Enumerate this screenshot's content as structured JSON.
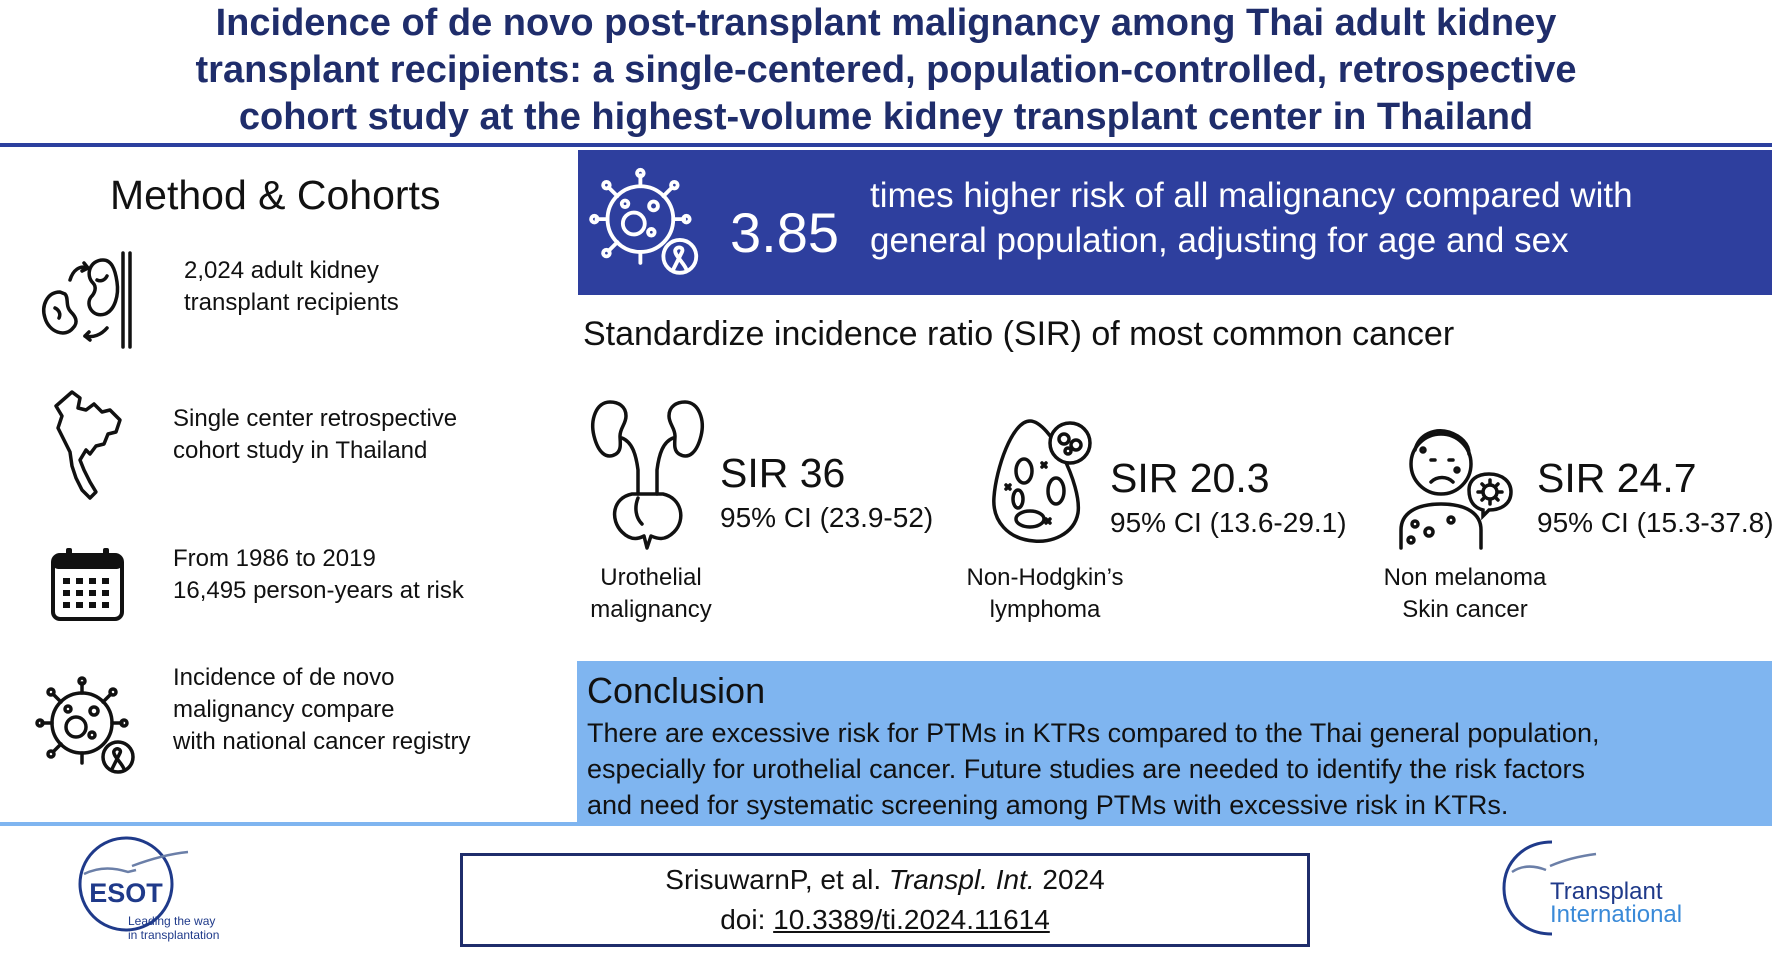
{
  "title": {
    "line1": "Incidence of de novo post-transplant malignancy among Thai adult kidney",
    "line2": "transplant recipients: a single-centered, population-controlled, retrospective",
    "line3": "cohort study at the highest-volume kidney transplant center in Thailand"
  },
  "method": {
    "heading": "Method & Cohorts",
    "items": [
      {
        "icon": "kidney-transplant-icon",
        "line1": "2,024 adult kidney",
        "line2": "transplant recipients",
        "line3": ""
      },
      {
        "icon": "thailand-map-icon",
        "line1": "Single center retrospective",
        "line2": "cohort study in  Thailand",
        "line3": ""
      },
      {
        "icon": "calendar-icon",
        "line1": "From 1986 to 2019",
        "line2": "16,495 person-years at risk",
        "line3": ""
      },
      {
        "icon": "cancer-cell-icon",
        "line1": "Incidence of de novo",
        "line2": "malignancy compare",
        "line3": "with national cancer registry"
      }
    ]
  },
  "finding": {
    "icon": "cancer-cell-icon",
    "value": "3.85",
    "line1": "times higher risk of all malignancy compared with",
    "line2": "general population, adjusting for age and sex"
  },
  "sir": {
    "heading": "Standardize incidence ratio (SIR) of most common cancer",
    "items": [
      {
        "icon": "urinary-tract-icon",
        "value": "SIR 36",
        "ci": "95% CI (23.9-52)",
        "label1": "Urothelial",
        "label2": "malignancy"
      },
      {
        "icon": "lymphoma-cell-icon",
        "value": "SIR 20.3",
        "ci": "95% CI (13.6-29.1)",
        "label1": "Non-Hodgkin’s",
        "label2": "lymphoma"
      },
      {
        "icon": "skin-rash-icon",
        "value": "SIR 24.7",
        "ci": "95% CI (15.3-37.8)",
        "label1": "Non melanoma",
        "label2": "Skin cancer"
      }
    ]
  },
  "conclusion": {
    "heading": "Conclusion",
    "line1": "There are excessive risk for PTMs in KTRs compared to the Thai general population,",
    "line2": "especially for urothelial cancer. Future studies are needed to identify the risk factors",
    "line3": "and need for systematic screening among PTMs with excessive risk in KTRs."
  },
  "citation": {
    "authors": "SrisuwarnP, et al. ",
    "journal": "Transpl. Int.",
    "year": " 2024",
    "doi_prefix": "doi: ",
    "doi": "10.3389/ti.2024.11614"
  },
  "logos": {
    "esot_name": "ESOT",
    "esot_tagline1": "Leading the way",
    "esot_tagline2": "in transplantation",
    "ti_line1": "Transplant",
    "ti_line2": "International"
  },
  "colors": {
    "title": "#1f2d6b",
    "finding_box": "#2e3f9e",
    "conclusion_box": "#7fb5f0",
    "rule_top": "#2b3f9e",
    "rule_bottom": "#7fb5f0"
  }
}
